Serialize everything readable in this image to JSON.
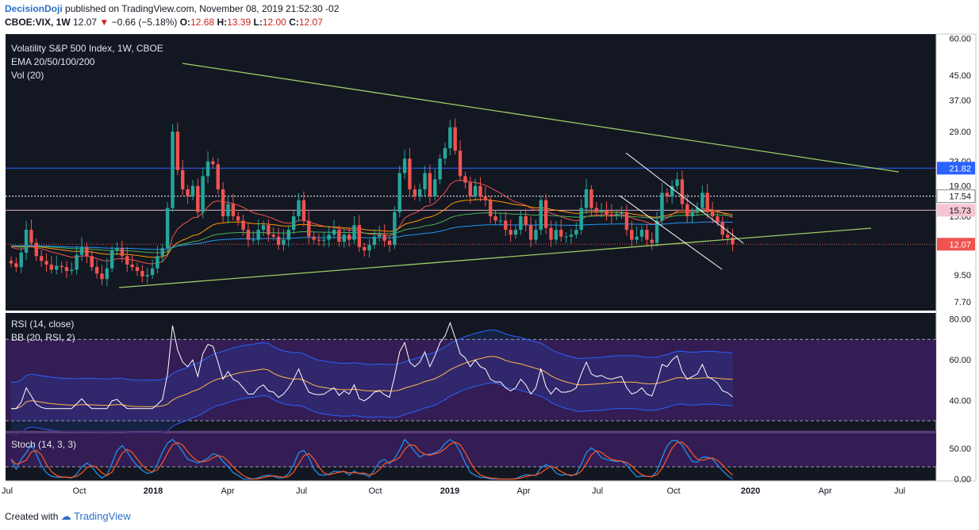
{
  "header": {
    "author": "DecisionDoji",
    "published": "published on TradingView.com, November 08, 2019 21:52:30 -02",
    "symbol": "CBOE:VIX, 1W",
    "last": "12.07",
    "change": "−0.66 (−5.18%)",
    "o_label": "O:",
    "o": "12.68",
    "h_label": "H:",
    "h": "13.39",
    "l_label": "L:",
    "l": "12.00",
    "c_label": "C:",
    "c": "12.07"
  },
  "footer": {
    "created": "Created with",
    "brand": "TradingView"
  },
  "colors": {
    "background": "#131722",
    "bull": "#26a69a",
    "bear": "#ef5350",
    "trendline": "#9ccc65",
    "channel": "#ffffff",
    "resistance": "#2962ff",
    "rsi_band": "#3a1f5d",
    "ema20": "#ef5350",
    "ema50": "#ff9800",
    "ema100": "#4caf50",
    "ema200": "#2196f3"
  },
  "chart_data": [
    {
      "type": "candlestick",
      "title": "Volatility S&P 500 Index, 1W, CBOE",
      "indicators_label": "EMA 20/50/100/200",
      "volume_label": "Vol (20)",
      "scale": "log",
      "ylim": [
        7.2,
        62
      ],
      "y_ticks": [
        "60.00",
        "45.00",
        "37.00",
        "29.00",
        "23.00",
        "19.00",
        "15.00",
        "9.50",
        "7.70"
      ],
      "x_ticks": [
        "Jul",
        "Oct",
        "2018",
        "Apr",
        "Jul",
        "Oct",
        "2019",
        "Apr",
        "Jul",
        "Oct",
        "2020",
        "Apr",
        "Jul"
      ],
      "price_tags": [
        {
          "value": 21.82,
          "label": "21.82",
          "style": "blue"
        },
        {
          "value": 17.54,
          "label": "17.54",
          "style": "white"
        },
        {
          "value": 15.73,
          "label": "15.73",
          "style": "pink"
        },
        {
          "value": 12.07,
          "label": "12.07",
          "style": "red"
        }
      ],
      "closes": [
        10.4,
        10.1,
        11.3,
        13.5,
        12.2,
        11.0,
        10.6,
        10.3,
        9.9,
        10.2,
        10.1,
        9.8,
        9.9,
        11.1,
        11.8,
        11.0,
        10.1,
        9.6,
        9.2,
        10.0,
        11.5,
        11.7,
        11.0,
        10.3,
        10.1,
        9.8,
        9.4,
        9.5,
        10.0,
        11.0,
        11.7,
        16.0,
        29.0,
        21.5,
        18.5,
        17.5,
        19.0,
        15.5,
        20.5,
        23.0,
        22.5,
        18.5,
        15.0,
        16.5,
        15.0,
        14.5,
        13.5,
        12.5,
        12.5,
        13.5,
        14.0,
        13.0,
        12.8,
        12.0,
        12.5,
        13.5,
        15.0,
        17.0,
        14.5,
        12.8,
        12.5,
        12.4,
        12.5,
        13.0,
        13.5,
        12.3,
        13.0,
        12.5,
        14.0,
        11.8,
        11.5,
        12.0,
        12.8,
        13.0,
        12.4,
        12.0,
        15.5,
        21.0,
        23.5,
        18.5,
        17.5,
        18.5,
        21.0,
        17.5,
        20.0,
        23.5,
        25.5,
        30.0,
        25.0,
        20.5,
        19.5,
        17.5,
        19.0,
        17.5,
        17.0,
        15.0,
        14.5,
        14.5,
        13.5,
        13.0,
        13.5,
        15.0,
        14.0,
        12.5,
        13.5,
        17.0,
        13.7,
        12.5,
        13.5,
        12.8,
        12.8,
        13.0,
        13.5,
        16.0,
        18.5,
        16.0,
        15.5,
        15.7,
        15.2,
        15.0,
        15.3,
        15.5,
        13.5,
        12.5,
        12.8,
        13.5,
        12.5,
        12.2,
        14.5,
        18.0,
        17.5,
        19.0,
        20.0,
        16.5,
        15.0,
        15.5,
        16.0,
        18.0,
        15.5,
        15.0,
        14.3,
        13.0,
        12.7,
        12.07
      ]
    },
    {
      "type": "line",
      "title": "RSI (14, close)",
      "bb_label": "BB (20, RSI, 2)",
      "ylim": [
        25,
        83
      ],
      "y_ticks": [
        "80.00",
        "60.00",
        "40.00"
      ],
      "levels": [
        70,
        30
      ]
    },
    {
      "type": "line",
      "title": "Stoch (14, 3, 3)",
      "ylim": [
        -3,
        75
      ],
      "y_ticks": [
        "50.00",
        "0.00"
      ],
      "levels": [
        80,
        20
      ]
    }
  ]
}
